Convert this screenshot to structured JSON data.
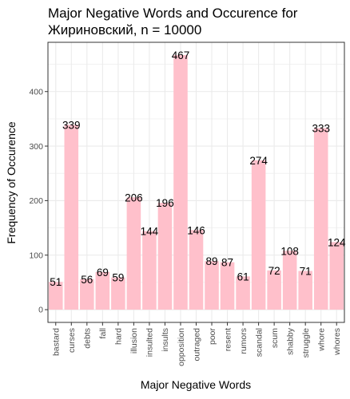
{
  "chart_data": {
    "type": "bar",
    "title_lines": [
      "Major Negative Words and Occurence for",
      "Жириновский, n = 10000"
    ],
    "xlabel": "Major Negative Words",
    "ylabel": "Frequency of Occurence",
    "categories": [
      "bastard",
      "curses",
      "debts",
      "fall",
      "hard",
      "illusion",
      "insulted",
      "insults",
      "opposition",
      "outraged",
      "poor",
      "resent",
      "rumors",
      "scandal",
      "scum",
      "shabby",
      "struggle",
      "whore",
      "whores"
    ],
    "values": [
      51,
      339,
      56,
      69,
      59,
      206,
      144,
      196,
      467,
      146,
      89,
      87,
      61,
      274,
      72,
      108,
      71,
      333,
      124
    ],
    "value_labels": [
      "51",
      "339",
      "56",
      "69",
      "59",
      "206",
      "144",
      "196",
      "467",
      "146",
      "89",
      "87",
      "61",
      "274",
      "72",
      "108",
      "71",
      "333",
      "124"
    ],
    "yticks": [
      0,
      100,
      200,
      300,
      400
    ],
    "ytick_labels": [
      "0",
      "100",
      "200",
      "300",
      "400"
    ],
    "ylim": [
      -23.35,
      490.35
    ],
    "grid": true,
    "legend": "none",
    "bar_color": "#ffc0cb",
    "panel_background": "#ffffff",
    "grid_color": "#ebebeb",
    "border_color": "#333333"
  }
}
